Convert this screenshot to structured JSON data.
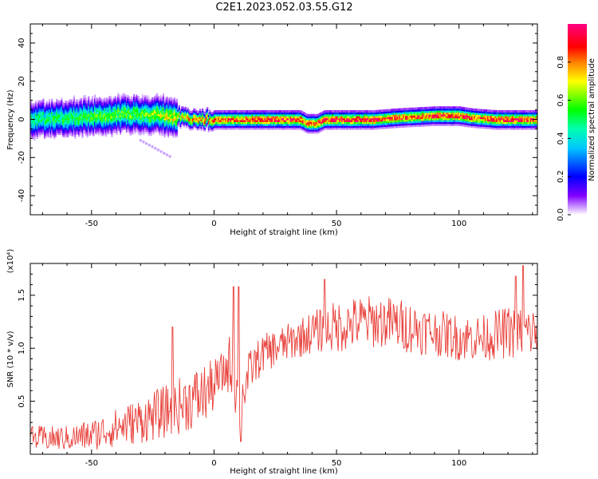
{
  "title": "C2E1.2023.052.03.55.G12",
  "chart_data": [
    {
      "type": "heatmap",
      "xlabel": "Height of straight line (km)",
      "ylabel": "Frequency (Hz)",
      "xlim": [
        -75,
        132
      ],
      "ylim": [
        -50,
        50
      ],
      "x_ticks": [
        -50,
        0,
        50,
        100
      ],
      "y_ticks": [
        -40,
        -20,
        0,
        20,
        40
      ],
      "colorbar": {
        "label": "Normalized spectral amplitude",
        "range": [
          0,
          1
        ],
        "ticks": [
          0.0,
          0.2,
          0.4,
          0.6,
          0.8
        ],
        "colors": [
          "#ffffff",
          "#cc99ff",
          "#6600ff",
          "#0000ff",
          "#00ffff",
          "#00ff00",
          "#ffff00",
          "#ff0000",
          "#ff0099"
        ]
      },
      "ridge": {
        "description_points_x": [
          -75,
          -60,
          -45,
          -30,
          -20,
          -10,
          0,
          10,
          20,
          35,
          38,
          42,
          45,
          55,
          65,
          75,
          90,
          100,
          105,
          115,
          125,
          132
        ],
        "frequency_hz": [
          0,
          1,
          2,
          3,
          2,
          1,
          0,
          0,
          0,
          0,
          -2,
          -2,
          0,
          0,
          0,
          1,
          2,
          2,
          1,
          0,
          0,
          0
        ],
        "peak_amplitude": [
          0.5,
          0.55,
          0.6,
          0.6,
          0.7,
          0.8,
          0.9,
          0.9,
          0.95,
          0.95,
          0.9,
          0.9,
          0.95,
          0.95,
          0.95,
          0.9,
          0.95,
          0.95,
          0.9,
          0.95,
          0.95,
          0.95
        ]
      }
    },
    {
      "type": "line",
      "xlabel": "Height of straight line (km)",
      "ylabel": "SNR (10 * v/v)",
      "y_multiplier": "(x10⁴)",
      "xlim": [
        -75,
        132
      ],
      "ylim": [
        0,
        18000
      ],
      "x_ticks": [
        -50,
        0,
        50,
        100
      ],
      "y_ticks": [
        5000,
        10000,
        15000
      ],
      "y_tick_labels": [
        "0.5",
        "1.0",
        "1.5"
      ],
      "series": [
        {
          "color": "#e8403a",
          "trend_x": [
            -75,
            -60,
            -50,
            -40,
            -30,
            -20,
            -10,
            -5,
            0,
            5,
            8,
            10,
            12,
            15,
            20,
            30,
            40,
            50,
            60,
            70,
            80,
            90,
            100,
            110,
            120,
            132
          ],
          "trend_y": [
            1500,
            1500,
            1800,
            2500,
            3200,
            4000,
            5000,
            5500,
            6500,
            8000,
            9000,
            4000,
            6000,
            8000,
            9500,
            10500,
            11500,
            12000,
            12500,
            12500,
            12000,
            11500,
            11000,
            11000,
            11500,
            11500
          ],
          "noise_amplitude": [
            1200,
            1200,
            1500,
            1800,
            2200,
            2500,
            2800,
            3000,
            2500,
            2000,
            4000,
            3000,
            2500,
            2000,
            1800,
            1800,
            2000,
            2500,
            2500,
            2500,
            2500,
            2200,
            2200,
            2200,
            2500,
            2500
          ],
          "spikes": [
            {
              "x": -17,
              "y": 12000
            },
            {
              "x": 8,
              "y": 15800
            },
            {
              "x": 10,
              "y": 15800
            },
            {
              "x": 11,
              "y": 1200
            },
            {
              "x": 45,
              "y": 16500
            },
            {
              "x": 123,
              "y": 16800
            },
            {
              "x": 126,
              "y": 17800
            }
          ]
        }
      ]
    }
  ]
}
